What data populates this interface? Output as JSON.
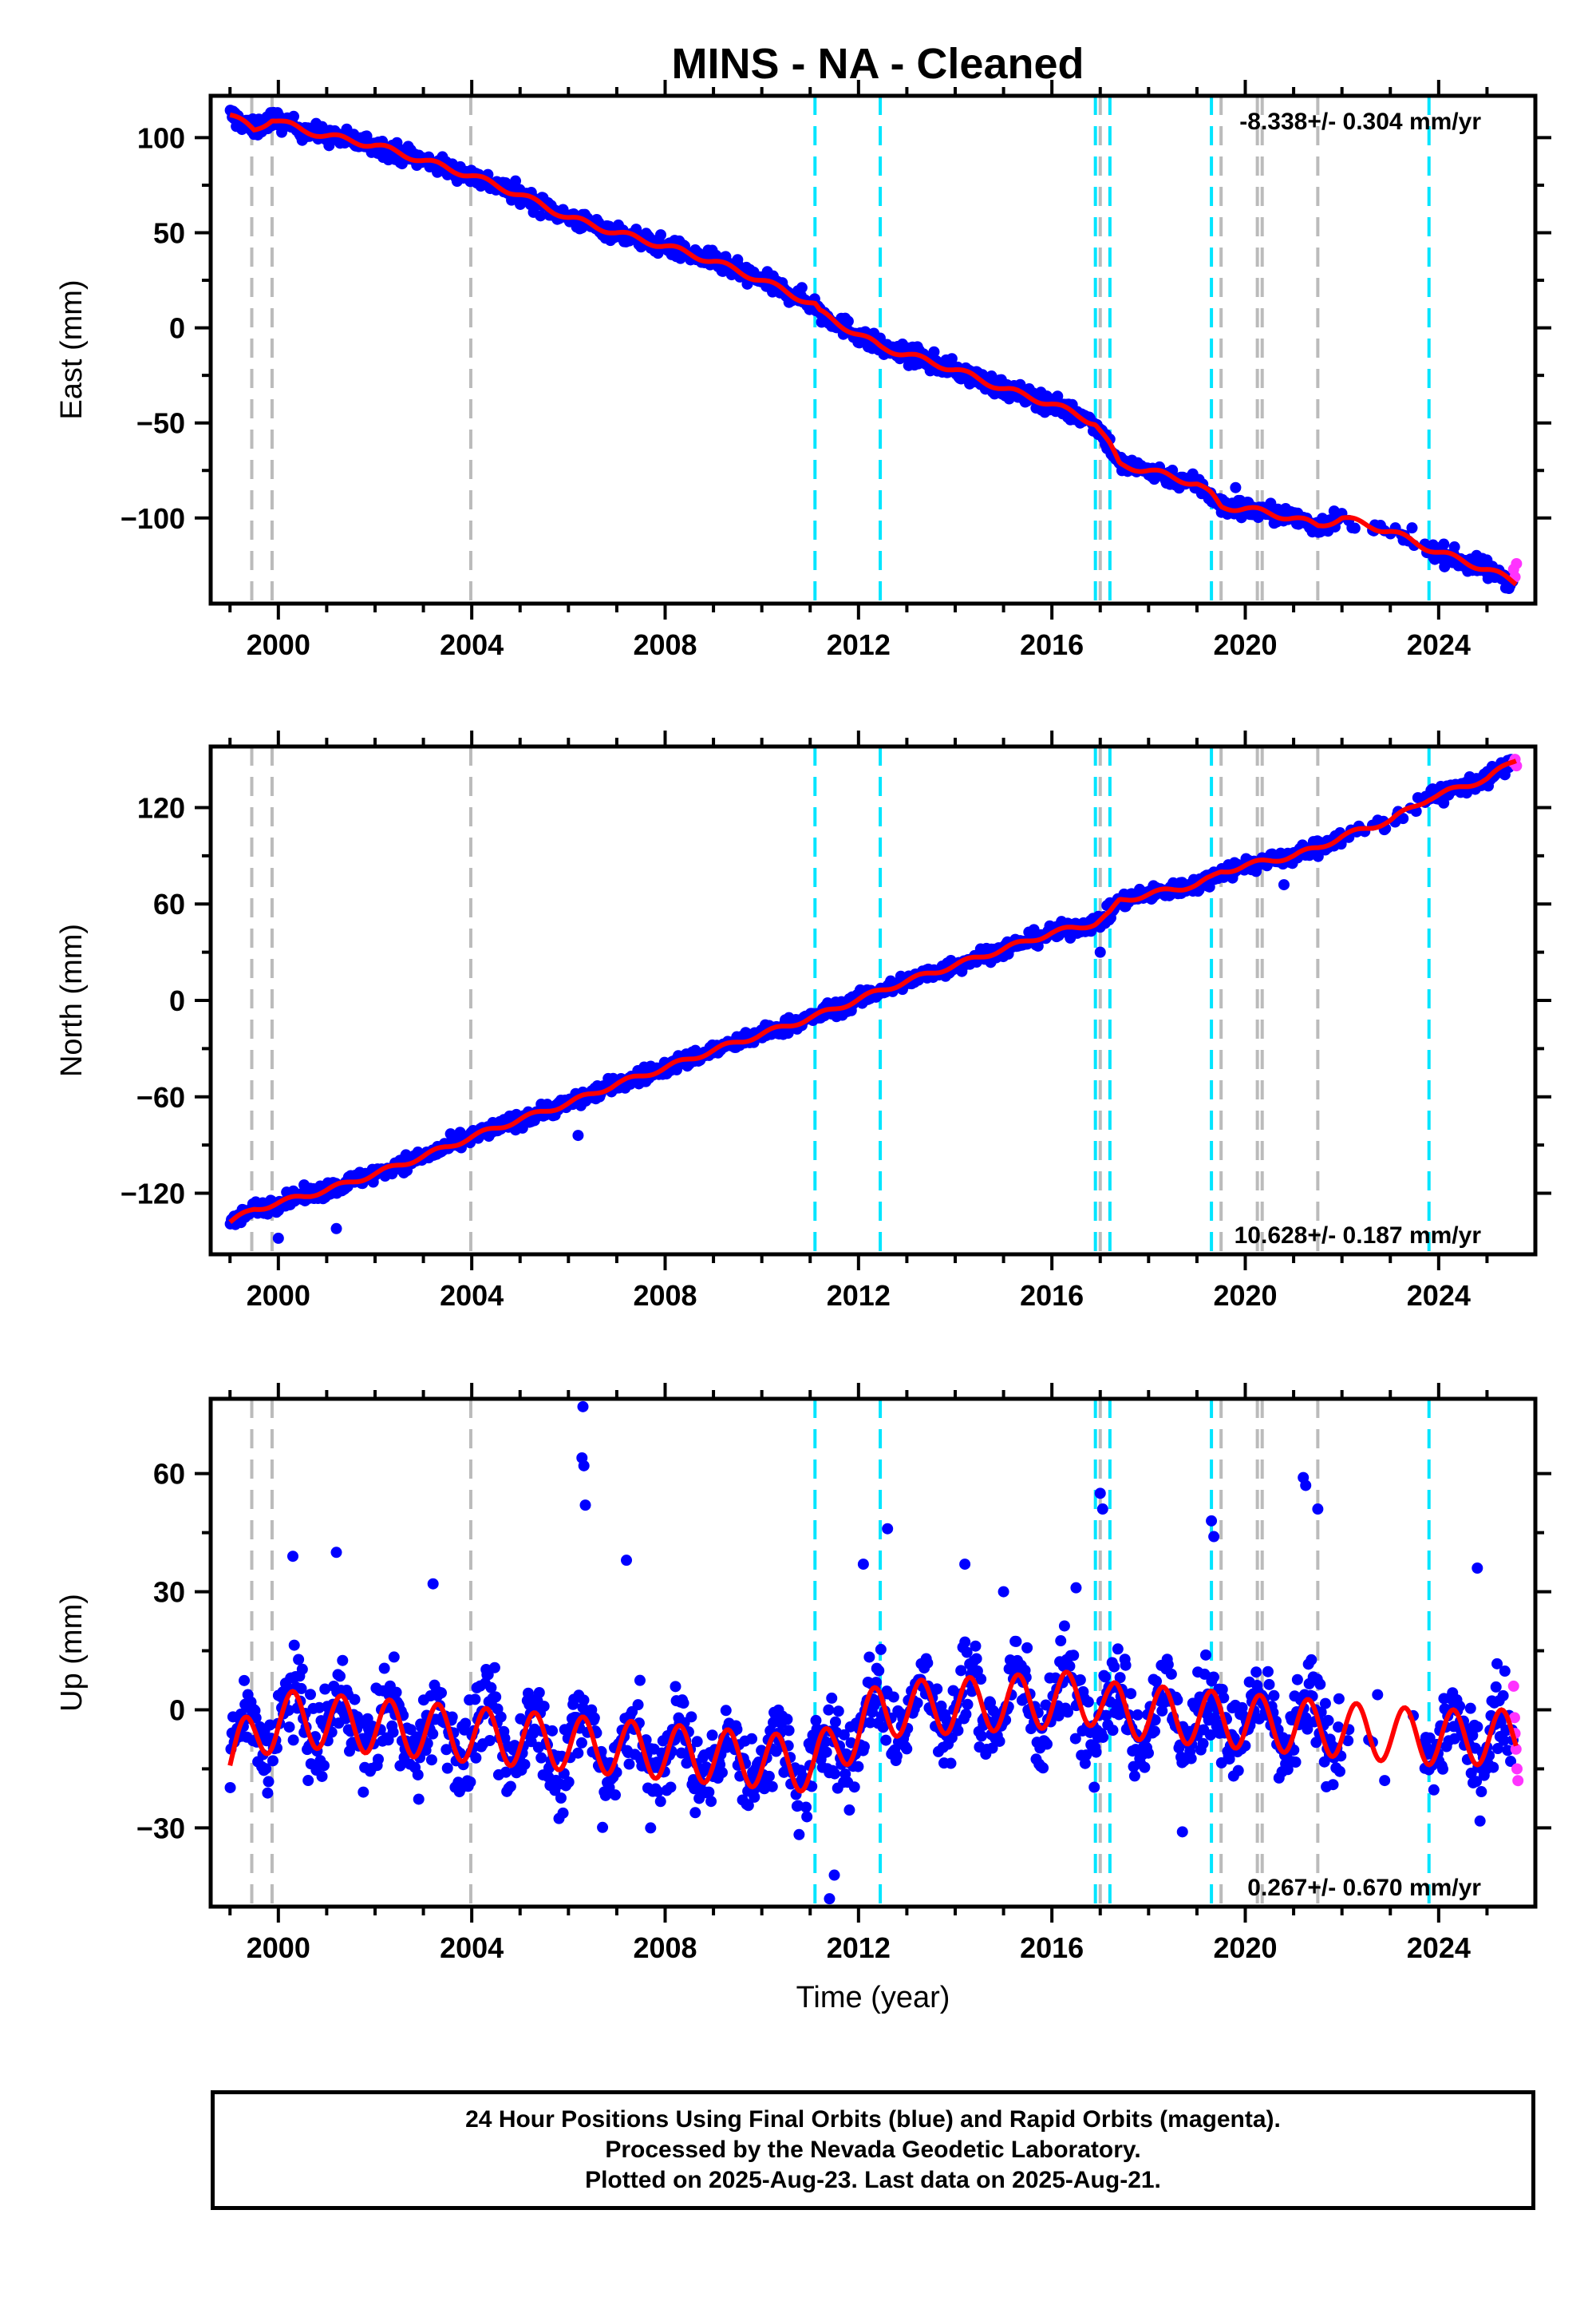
{
  "chart_data": {
    "type": "scatter",
    "title": "MINS  - NA - Cleaned",
    "xlabel": "Time (year)",
    "x_ticks": [
      2000,
      2004,
      2008,
      2012,
      2016,
      2020,
      2024
    ],
    "xlim": [
      1998.6,
      2026.0
    ],
    "event_lines": {
      "gray": [
        1999.45,
        1999.87,
        2003.98,
        2017.0,
        2019.5,
        2020.25,
        2020.35,
        2021.5
      ],
      "cyan": [
        2011.1,
        2012.45,
        2016.9,
        2017.2,
        2019.3,
        2023.8
      ]
    },
    "series_colors": {
      "final": "#0000ff",
      "rapid": "#ff33ff",
      "model": "#ff0000",
      "gray_event": "#bbbbbb",
      "cyan_event": "#00e5ff"
    },
    "panels": [
      {
        "component": "east",
        "ylabel": "East (mm)",
        "ylim": [
          -145,
          122
        ],
        "y_ticks": [
          100,
          50,
          0,
          -50,
          -100
        ],
        "y_tick_labels": [
          "100",
          "50",
          "0",
          "−50",
          "−100"
        ],
        "rate_label": "-8.338+/- 0.304 mm/yr",
        "rate_position": "top-right",
        "model_curve": [
          [
            1999.0,
            112
          ],
          [
            1999.5,
            104
          ],
          [
            1999.87,
            110
          ],
          [
            2000.5,
            104
          ],
          [
            2001.0,
            101
          ],
          [
            2002.0,
            96
          ],
          [
            2003.0,
            88
          ],
          [
            2004.0,
            80
          ],
          [
            2005.0,
            70
          ],
          [
            2006.0,
            58
          ],
          [
            2007.0,
            50
          ],
          [
            2008.0,
            43
          ],
          [
            2009.0,
            35
          ],
          [
            2010.0,
            25
          ],
          [
            2011.1,
            12
          ],
          [
            2011.2,
            8
          ],
          [
            2012.45,
            -10
          ],
          [
            2013.0,
            -14
          ],
          [
            2014.0,
            -22
          ],
          [
            2015.0,
            -32
          ],
          [
            2016.0,
            -40
          ],
          [
            2016.9,
            -50
          ],
          [
            2017.2,
            -62
          ],
          [
            2017.4,
            -72
          ],
          [
            2018.0,
            -75
          ],
          [
            2019.0,
            -82
          ],
          [
            2019.3,
            -88
          ],
          [
            2019.5,
            -94
          ],
          [
            2020.0,
            -95
          ],
          [
            2021.0,
            -100
          ],
          [
            2021.5,
            -104
          ],
          [
            2022.0,
            -100
          ],
          [
            2023.0,
            -107
          ],
          [
            2023.8,
            -116
          ],
          [
            2024.0,
            -118
          ],
          [
            2025.0,
            -127
          ],
          [
            2025.6,
            -134
          ]
        ],
        "scatter_outliers": [
          [
            2009.7,
            23
          ],
          [
            2012.2,
            -10
          ],
          [
            2019.8,
            -84
          ],
          [
            2024.6,
            -128
          ]
        ],
        "rapid_points": [
          [
            2025.55,
            -127
          ],
          [
            2025.58,
            -131
          ],
          [
            2025.61,
            -124
          ]
        ]
      },
      {
        "component": "north",
        "ylabel": "North (mm)",
        "ylim": [
          -158,
          158
        ],
        "y_ticks": [
          120,
          60,
          0,
          -60,
          -120
        ],
        "y_tick_labels": [
          "120",
          "60",
          "0",
          "−60",
          "−120"
        ],
        "rate_label": "10.628+/- 0.187 mm/yr",
        "rate_position": "bottom-right",
        "model_curve": [
          [
            1999.0,
            -138
          ],
          [
            1999.5,
            -130
          ],
          [
            1999.87,
            -127
          ],
          [
            2000.5,
            -122
          ],
          [
            2001.0,
            -118
          ],
          [
            2002.0,
            -108
          ],
          [
            2003.0,
            -97
          ],
          [
            2004.0,
            -85
          ],
          [
            2005.0,
            -74
          ],
          [
            2006.0,
            -64
          ],
          [
            2007.0,
            -52
          ],
          [
            2008.0,
            -42
          ],
          [
            2009.0,
            -31
          ],
          [
            2010.0,
            -21
          ],
          [
            2011.1,
            -10
          ],
          [
            2012.45,
            6
          ],
          [
            2013.0,
            12
          ],
          [
            2014.0,
            22
          ],
          [
            2015.0,
            32
          ],
          [
            2016.0,
            42
          ],
          [
            2016.9,
            48
          ],
          [
            2017.2,
            54
          ],
          [
            2017.4,
            62
          ],
          [
            2018.0,
            66
          ],
          [
            2019.0,
            72
          ],
          [
            2019.3,
            76
          ],
          [
            2019.5,
            80
          ],
          [
            2020.0,
            84
          ],
          [
            2021.0,
            90
          ],
          [
            2021.5,
            95
          ],
          [
            2022.0,
            102
          ],
          [
            2023.0,
            112
          ],
          [
            2023.8,
            126
          ],
          [
            2024.0,
            128
          ],
          [
            2025.0,
            138
          ],
          [
            2025.6,
            150
          ]
        ],
        "scatter_outliers": [
          [
            2000.0,
            -148
          ],
          [
            2001.2,
            -142
          ],
          [
            2006.2,
            -84
          ],
          [
            2013.8,
            15
          ],
          [
            2017.0,
            30
          ],
          [
            2020.8,
            72
          ]
        ],
        "rapid_points": [
          [
            2025.55,
            148
          ],
          [
            2025.58,
            150
          ],
          [
            2025.61,
            146
          ]
        ]
      },
      {
        "component": "up",
        "ylabel": "Up (mm)",
        "ylim": [
          -50,
          79
        ],
        "y_ticks": [
          60,
          30,
          0,
          -30
        ],
        "y_tick_labels": [
          "60",
          "30",
          "0",
          "−30"
        ],
        "rate_label": "0.267+/- 0.670 mm/yr",
        "rate_position": "bottom-right",
        "seasonal_amplitude_mm": 7,
        "model_offsets": [
          [
            1999.0,
            -12
          ],
          [
            2000.0,
            -2
          ],
          [
            2011.1,
            -14
          ],
          [
            2012.45,
            0
          ],
          [
            2016.9,
            3
          ],
          [
            2017.2,
            0
          ],
          [
            2023.8,
            -7
          ],
          [
            2025.6,
            -7
          ]
        ],
        "scatter_outliers": [
          [
            2006.3,
            77
          ],
          [
            2006.28,
            64
          ],
          [
            2006.32,
            62
          ],
          [
            2006.35,
            52
          ],
          [
            2000.3,
            39
          ],
          [
            2001.2,
            40
          ],
          [
            2003.2,
            32
          ],
          [
            2007.2,
            38
          ],
          [
            2012.6,
            46
          ],
          [
            2011.4,
            -48
          ],
          [
            2011.5,
            -42
          ],
          [
            2012.1,
            37
          ],
          [
            2014.2,
            37
          ],
          [
            2017.0,
            55
          ],
          [
            2017.05,
            51
          ],
          [
            2019.3,
            48
          ],
          [
            2019.35,
            44
          ],
          [
            2021.2,
            59
          ],
          [
            2021.25,
            57
          ],
          [
            2021.5,
            51
          ],
          [
            2024.8,
            36
          ],
          [
            2018.7,
            -31
          ],
          [
            2007.7,
            -30
          ],
          [
            2016.5,
            31
          ],
          [
            2015.0,
            30
          ]
        ],
        "rapid_points": [
          [
            2025.55,
            6
          ],
          [
            2025.57,
            -2
          ],
          [
            2025.6,
            -10
          ],
          [
            2025.62,
            -15
          ],
          [
            2025.64,
            -18
          ],
          [
            2025.58,
            -6
          ]
        ]
      }
    ]
  },
  "footer": {
    "line1": "24 Hour Positions Using Final Orbits (blue) and Rapid Orbits (magenta).",
    "line2": "Processed by the Nevada Geodetic Laboratory.",
    "line3": "Plotted on 2025-Aug-23. Last data on 2025-Aug-21."
  }
}
